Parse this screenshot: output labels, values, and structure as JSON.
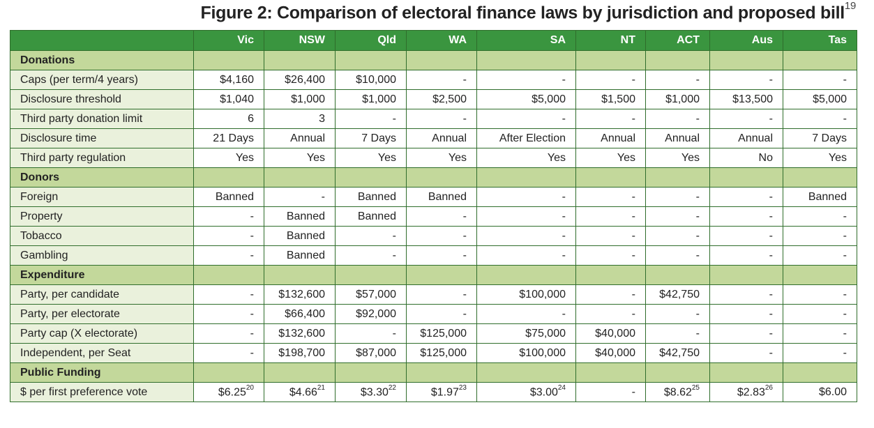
{
  "title": {
    "text": "Figure 2: Comparison of electoral finance laws by jurisdiction and proposed bill",
    "footnote": "19"
  },
  "table": {
    "columns": [
      "Vic",
      "NSW",
      "Qld",
      "WA",
      "SA",
      "NT",
      "ACT",
      "Aus",
      "Tas"
    ],
    "sections": [
      {
        "title": "Donations",
        "rows": [
          {
            "label": "Caps (per term/4 years)",
            "cells": [
              "$4,160",
              "$26,400",
              "$10,000",
              "-",
              "-",
              "-",
              "-",
              "-",
              "-"
            ]
          },
          {
            "label": "Disclosure threshold",
            "cells": [
              "$1,040",
              "$1,000",
              "$1,000",
              "$2,500",
              "$5,000",
              "$1,500",
              "$1,000",
              "$13,500",
              "$5,000"
            ]
          },
          {
            "label": "Third party donation limit",
            "cells": [
              "6",
              "3",
              "-",
              "-",
              "-",
              "-",
              "-",
              "-",
              "-"
            ]
          },
          {
            "label": "Disclosure time",
            "cells": [
              "21 Days",
              "Annual",
              "7 Days",
              "Annual",
              "After Election",
              "Annual",
              "Annual",
              "Annual",
              "7 Days"
            ]
          },
          {
            "label": "Third party regulation",
            "cells": [
              "Yes",
              "Yes",
              "Yes",
              "Yes",
              "Yes",
              "Yes",
              "Yes",
              "No",
              "Yes"
            ]
          }
        ]
      },
      {
        "title": "Donors",
        "rows": [
          {
            "label": "Foreign",
            "cells": [
              "Banned",
              "-",
              "Banned",
              "Banned",
              "-",
              "-",
              "-",
              "-",
              "Banned"
            ]
          },
          {
            "label": "Property",
            "cells": [
              "-",
              "Banned",
              "Banned",
              "-",
              "-",
              "-",
              "-",
              "-",
              "-"
            ]
          },
          {
            "label": "Tobacco",
            "cells": [
              "-",
              "Banned",
              "-",
              "-",
              "-",
              "-",
              "-",
              "-",
              "-"
            ]
          },
          {
            "label": "Gambling",
            "cells": [
              "-",
              "Banned",
              "-",
              "-",
              "-",
              "-",
              "-",
              "-",
              "-"
            ]
          }
        ]
      },
      {
        "title": "Expenditure",
        "rows": [
          {
            "label": "Party, per candidate",
            "cells": [
              "-",
              "$132,600",
              "$57,000",
              "-",
              "$100,000",
              "-",
              "$42,750",
              "-",
              "-"
            ]
          },
          {
            "label": "Party, per electorate",
            "cells": [
              "-",
              "$66,400",
              "$92,000",
              "-",
              "-",
              "-",
              "-",
              "-",
              "-"
            ]
          },
          {
            "label": "Party cap (X electorate)",
            "cells": [
              "-",
              "$132,600",
              "-",
              "$125,000",
              "$75,000",
              "$40,000",
              "-",
              "-",
              "-"
            ]
          },
          {
            "label": "Independent, per Seat",
            "cells": [
              "-",
              "$198,700",
              "$87,000",
              "$125,000",
              "$100,000",
              "$40,000",
              "$42,750",
              "-",
              "-"
            ]
          }
        ]
      },
      {
        "title": "Public Funding",
        "rows": [
          {
            "label": "$ per first preference vote",
            "cells": [
              {
                "text": "$6.25",
                "sup": "20"
              },
              {
                "text": "$4.66",
                "sup": "21"
              },
              {
                "text": "$3.30",
                "sup": "22"
              },
              {
                "text": "$1.97",
                "sup": "23"
              },
              {
                "text": "$3.00",
                "sup": "24"
              },
              "-",
              {
                "text": "$8.62",
                "sup": "25"
              },
              {
                "text": "$2.83",
                "sup": "26"
              },
              "$6.00"
            ]
          }
        ]
      }
    ]
  }
}
